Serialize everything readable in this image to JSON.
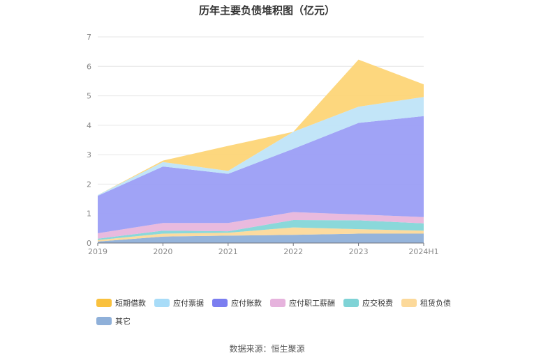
{
  "chart_data": {
    "type": "area",
    "title": "历年主要负债堆积图（亿元）",
    "categories": [
      "2019",
      "2020",
      "2021",
      "2022",
      "2023",
      "2024H1"
    ],
    "ylim": [
      0,
      7
    ],
    "yticks": [
      "0",
      "1",
      "2",
      "3",
      "4",
      "5",
      "6",
      "7"
    ],
    "grid": true,
    "legend_position": "bottom",
    "stacked": true,
    "series": [
      {
        "name": "其它",
        "color": "#8fb0d9",
        "values": [
          0.05,
          0.22,
          0.25,
          0.28,
          0.32,
          0.32
        ]
      },
      {
        "name": "租赁负债",
        "color": "#fcd99a",
        "values": [
          0.05,
          0.1,
          0.1,
          0.25,
          0.15,
          0.1
        ]
      },
      {
        "name": "应交税费",
        "color": "#84d6d8",
        "values": [
          0.05,
          0.1,
          0.05,
          0.25,
          0.3,
          0.25
        ]
      },
      {
        "name": "应付职工薪酬",
        "color": "#e8b6dc",
        "values": [
          0.18,
          0.26,
          0.28,
          0.27,
          0.2,
          0.21
        ]
      },
      {
        "name": "应付账款",
        "color": "#9b9ef6",
        "values": [
          1.27,
          1.92,
          1.67,
          2.15,
          3.11,
          3.43
        ]
      },
      {
        "name": "应付票据",
        "color": "#bfe4f8",
        "values": [
          0.03,
          0.15,
          0.1,
          0.58,
          0.55,
          0.65
        ]
      },
      {
        "name": "短期借款",
        "color": "#fdd577",
        "values": [
          0.0,
          0.05,
          0.85,
          0.0,
          1.6,
          0.43
        ]
      }
    ]
  },
  "legend_items": [
    {
      "label": "短期借款",
      "color": "#f9c13e"
    },
    {
      "label": "应付票据",
      "color": "#a8dcf8"
    },
    {
      "label": "应付账款",
      "color": "#7b7ef0"
    },
    {
      "label": "应付职工薪酬",
      "color": "#e6b3dd"
    },
    {
      "label": "应交税费",
      "color": "#7fd3d6"
    },
    {
      "label": "租赁负债",
      "color": "#fcd99a"
    },
    {
      "label": "其它",
      "color": "#8fb0d9"
    }
  ],
  "source": "数据来源：恒生聚源"
}
